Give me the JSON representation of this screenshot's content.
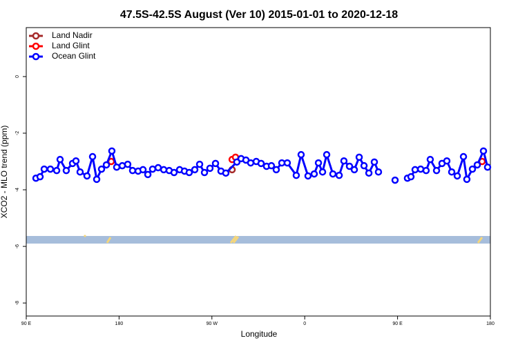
{
  "chart_data": {
    "type": "line",
    "title": "47.5S-42.5S August (Ver 10)   2015-01-01 to 2020-12-18",
    "xlabel": "Longitude",
    "ylabel": "XCO2 - MLO trend (ppm)",
    "xlim": [
      90,
      540
    ],
    "ylim": [
      -8.46,
      1.73
    ],
    "xticks": [
      {
        "value": 90,
        "label": "90 E"
      },
      180,
      {
        "value": 270,
        "label": "90 W"
      },
      {
        "value": 360,
        "label": "0"
      },
      {
        "value": 450,
        "label": "90 E"
      },
      {
        "value": 540,
        "label": "180"
      }
    ],
    "yticks": [
      0,
      -2,
      -4,
      -6,
      -8
    ],
    "legend": "top-left",
    "series": [
      {
        "name": "Land Nadir",
        "color": "#a52a2a",
        "x": [
          289.6
        ],
        "values": [
          -3.29
        ]
      },
      {
        "name": "Land Glint",
        "color": "#ff0000",
        "x": [
          172.4,
          null,
          289.6,
          292.9,
          null,
          532.0
        ],
        "values": [
          -3.0,
          null,
          -2.93,
          -2.85,
          null,
          -3.0
        ]
      },
      {
        "name": "Ocean Glint",
        "color": "#0000ff",
        "x": [
          99.4,
          103.4,
          107.4,
          113.4,
          119.5,
          122.8,
          128.8,
          134.9,
          138.2,
          142.2,
          148.9,
          154.3,
          158.3,
          163.0,
          167.7,
          173.0,
          177.7,
          183.1,
          188.4,
          193.1,
          198.5,
          203.2,
          207.9,
          212.5,
          217.9,
          223.3,
          228.6,
          233.3,
          238.7,
          243.4,
          248.0,
          253.4,
          258.1,
          262.8,
          268.1,
          273.5,
          278.8,
          283.5,
          294.2,
          298.3,
          303.0,
          307.6,
          313.0,
          317.7,
          323.0,
          327.7,
          332.4,
          337.8,
          343.1,
          351.8,
          356.5,
          363.2,
          369.2,
          373.3,
          377.3,
          381.3,
          387.3,
          393.4,
          398.0,
          403.4,
          408.1,
          412.8,
          417.5,
          422.2,
          427.5,
          431.5,
          null,
          447.6,
          null,
          459.6,
          463.0,
          467.0,
          472.4,
          477.7,
          481.7,
          487.8,
          493.1,
          497.8,
          502.5,
          507.9,
          513.9,
          517.2,
          522.6,
          527.3,
          533.3,
          537.3
        ],
        "values": [
          -3.59,
          -3.54,
          -3.27,
          -3.27,
          -3.32,
          -2.93,
          -3.32,
          -3.07,
          -2.98,
          -3.37,
          -3.51,
          -2.83,
          -3.63,
          -3.27,
          -3.12,
          -2.63,
          -3.2,
          -3.15,
          -3.1,
          -3.32,
          -3.34,
          -3.29,
          -3.46,
          -3.27,
          -3.22,
          -3.29,
          -3.32,
          -3.39,
          -3.29,
          -3.34,
          -3.39,
          -3.29,
          -3.1,
          -3.39,
          -3.24,
          -3.07,
          -3.34,
          -3.41,
          -3.02,
          -2.9,
          -2.95,
          -3.05,
          -3.0,
          -3.07,
          -3.17,
          -3.15,
          -3.29,
          -3.05,
          -3.05,
          -3.49,
          -2.76,
          -3.51,
          -3.44,
          -3.05,
          -3.37,
          -2.76,
          -3.44,
          -3.49,
          -2.98,
          -3.17,
          -3.29,
          -2.85,
          -3.15,
          -3.41,
          -3.02,
          -3.37,
          null,
          -3.66,
          null,
          -3.59,
          -3.54,
          -3.29,
          -3.27,
          -3.32,
          -2.93,
          -3.32,
          -3.07,
          -2.98,
          -3.37,
          -3.51,
          -2.83,
          -3.63,
          -3.27,
          -3.12,
          -2.63,
          -3.2
        ]
      }
    ]
  }
}
